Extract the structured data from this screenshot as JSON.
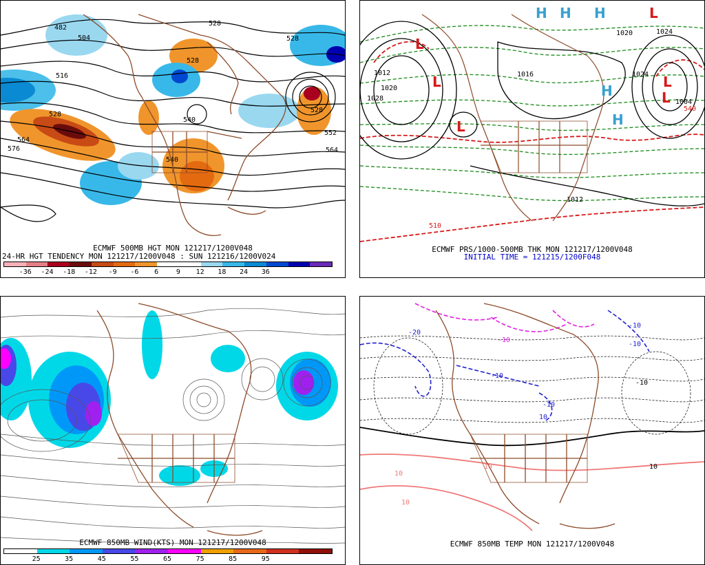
{
  "panels": {
    "top_left": {
      "caption1": "ECMWF 500MB HGT MON 121217/1200V048",
      "caption2": "24-HR HGT TENDENCY MON 121217/1200V048 : SUN 121216/1200V024",
      "colorbar": {
        "colors": [
          "#f8b0b8",
          "#e67e86",
          "#a8001e",
          "#6a0c0c",
          "#c84a14",
          "#e46a10",
          "#f0952c",
          "#ffffff",
          "#ffffff",
          "#9ad8f0",
          "#38b8e8",
          "#0a8ad2",
          "#0048d0",
          "#0000b0",
          "#6a2ab8"
        ],
        "ticks": [
          "-36",
          "-24",
          "-18",
          "-12",
          "-9",
          "-6",
          "6",
          "9",
          "12",
          "18",
          "24",
          "36"
        ]
      },
      "contour_labels": [
        "482",
        "504",
        "516",
        "528",
        "528",
        "528",
        "528",
        "540",
        "540",
        "552",
        "564",
        "576",
        "564",
        "528"
      ]
    },
    "top_right": {
      "caption1": "ECMWF PRS/1000-500MB THK MON 121217/1200V048",
      "caption2": "INITIAL TIME = 121215/1200F048",
      "pressure_labels": [
        "1012",
        "1020",
        "1028",
        "1024",
        "1016",
        "1004",
        "1012",
        "1024",
        "1020"
      ],
      "thickness_labels": [
        "540",
        "510"
      ],
      "highs": [
        "H",
        "H",
        "H",
        "H",
        "H"
      ],
      "lows": [
        "L",
        "L",
        "L",
        "L",
        "L",
        "L"
      ]
    },
    "bottom_left": {
      "caption1": "ECMWF 850MB WIND(KTS) MON 121217/1200V048",
      "colorbar": {
        "colors": [
          "#ffffff",
          "#00d8e8",
          "#0098f8",
          "#4848e8",
          "#a020f0",
          "#ff00ff",
          "#f0a000",
          "#e86818",
          "#d03020",
          "#901008"
        ],
        "ticks": [
          "25",
          "35",
          "45",
          "55",
          "65",
          "75",
          "85",
          "95"
        ]
      }
    },
    "bottom_right": {
      "caption1": "ECMWF 850MB TEMP MON 121217/1200V048",
      "temp_labels": [
        "-20",
        "-10",
        "-10",
        "-10",
        "10",
        "10",
        "10",
        "10",
        "-10",
        "-10",
        "-10",
        "10"
      ]
    }
  }
}
